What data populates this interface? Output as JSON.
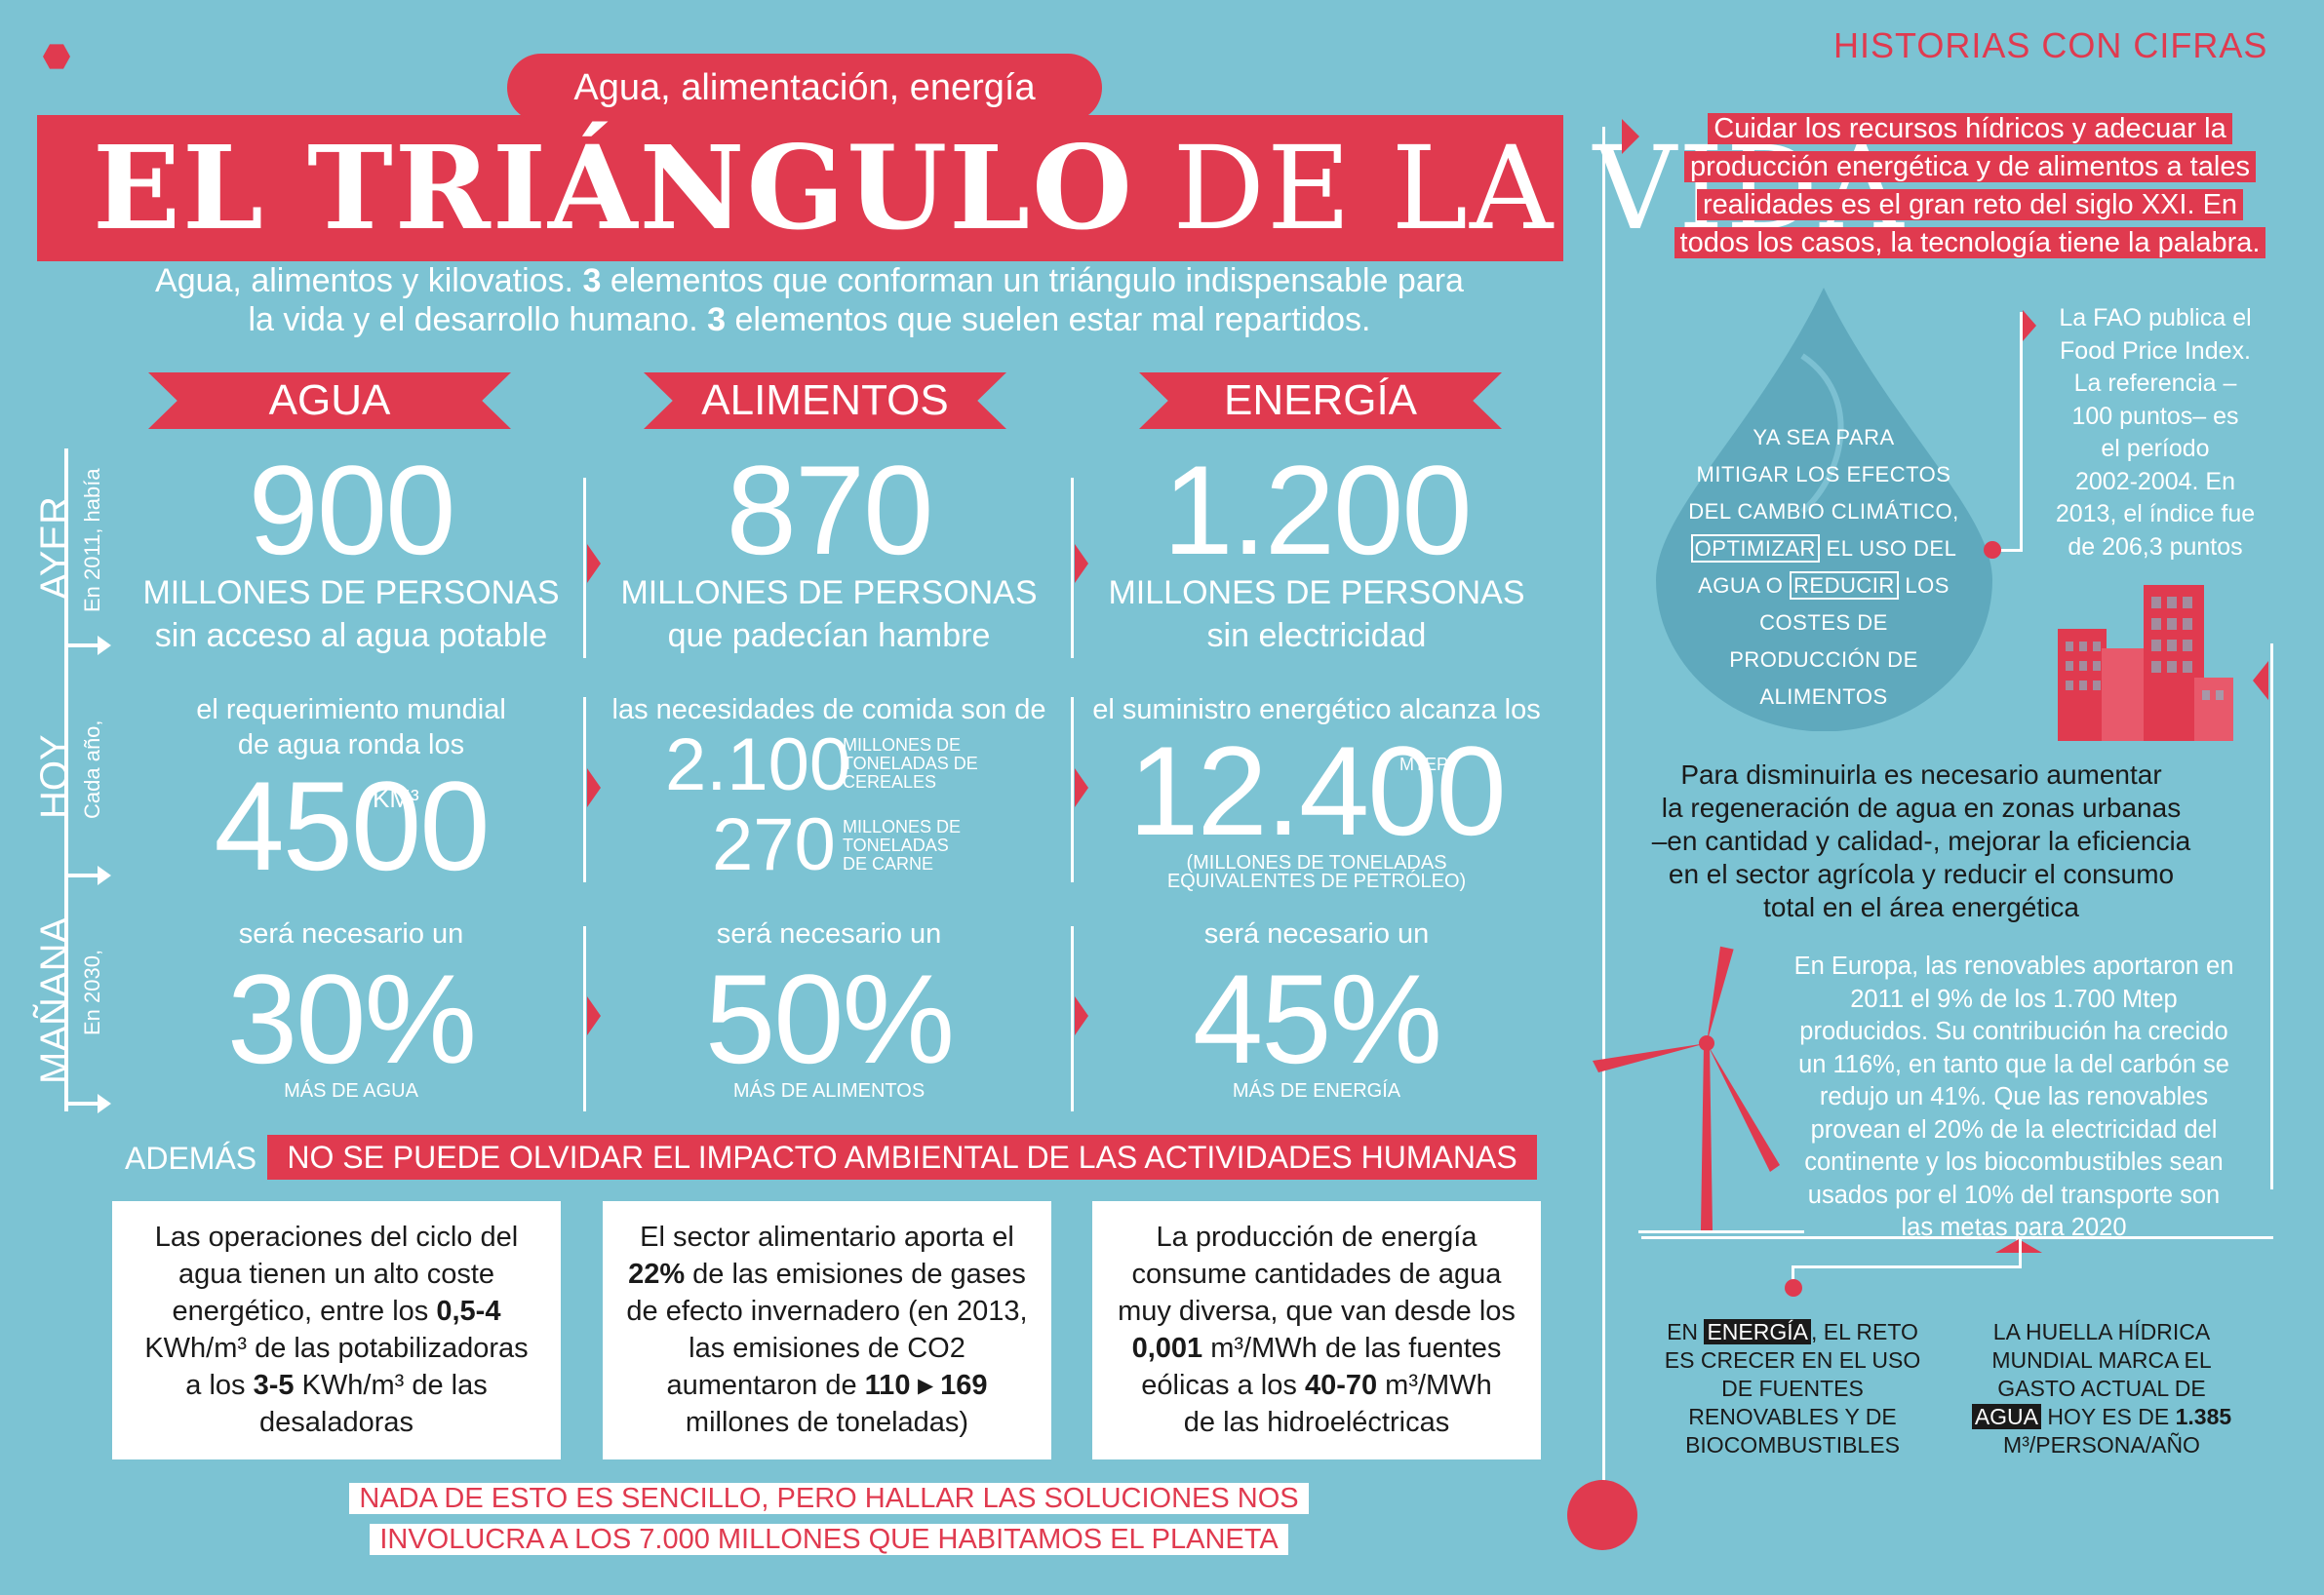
{
  "header": {
    "brand": "HISTORIAS CON CIFRAS",
    "kicker": "Agua, alimentación, energía",
    "title_bold": "EL TRIÁNGULO",
    "title_light": " DE LA VIDA",
    "subtitle_line1_a": "Agua, alimentos y kilovatios. ",
    "subtitle_line1_b": "3",
    "subtitle_line1_c": " elementos que conforman un triángulo indispensable para",
    "subtitle_line2_a": "la vida y el desarrollo humano. ",
    "subtitle_line2_b": "3",
    "subtitle_line2_c": " elementos que suelen estar mal repartidos."
  },
  "columns": {
    "agua": "AGUA",
    "alimentos": "ALIMENTOS",
    "energia": "ENERGÍA"
  },
  "rows": {
    "ayer": {
      "label": "AYER",
      "sub": "En 2011, había"
    },
    "hoy": {
      "label": "HOY",
      "sub": "Cada año,"
    },
    "manana": {
      "label": "MAÑANA",
      "sub": "En 2030,"
    }
  },
  "ayer": {
    "agua": {
      "num": "900",
      "unit": "MILLONES DE PERSONAS",
      "desc": "sin acceso al agua potable"
    },
    "alimentos": {
      "num": "870",
      "unit": "MILLONES DE PERSONAS",
      "desc": "que padecían hambre"
    },
    "energia": {
      "num": "1.200",
      "unit": "MILLONES DE PERSONAS",
      "desc": "sin electricidad"
    }
  },
  "hoy": {
    "agua": {
      "intro1": "el requerimiento mundial",
      "intro2": "de agua ronda los",
      "num": "4500",
      "unit": "KM³"
    },
    "alimentos": {
      "intro": "las necesidades de comida son de",
      "num1": "2.100",
      "unit1a": "MILLONES DE",
      "unit1b": "TONELADAS DE",
      "unit1c": "CEREALES",
      "num2": "270",
      "unit2a": "MILLONES DE",
      "unit2b": "TONELADAS",
      "unit2c": "DE CARNE"
    },
    "energia": {
      "intro": "el suministro energético alcanza los",
      "num": "12.400",
      "unit": "MTEP",
      "note1": "(MILLONES DE TONELADAS",
      "note2": "EQUIVALENTES DE PETRÓLEO)"
    }
  },
  "manana": {
    "agua": {
      "intro": "será necesario un",
      "num": "30%",
      "unit": "MÁS DE AGUA"
    },
    "alimentos": {
      "intro": "será necesario un",
      "num": "50%",
      "unit": "MÁS DE ALIMENTOS"
    },
    "energia": {
      "intro": "será necesario un",
      "num": "45%",
      "unit": "MÁS DE ENERGÍA"
    }
  },
  "ademas": {
    "label": "ADEMÁS",
    "banner": "NO SE PUEDE OLVIDAR EL IMPACTO AMBIENTAL DE LAS ACTIVIDADES HUMANAS"
  },
  "boxes": {
    "b1": {
      "l1": "Las operaciones del ciclo del",
      "l2": "agua tienen un alto coste",
      "l3a": "energético, entre los ",
      "l3b": "0,5-4",
      "l4": "KWh/m³ de las potabilizadoras",
      "l5a": "a los ",
      "l5b": "3-5",
      "l5c": " KWh/m³ de las",
      "l6": "desaladoras"
    },
    "b2": {
      "l1": "El sector alimentario aporta el",
      "l2a": "22%",
      "l2b": " de las emisiones de gases",
      "l3": "de efecto invernadero (en 2013,",
      "l4": "las emisiones de CO2",
      "l5a": "aumentaron de ",
      "l5b": "110 ▸ 169",
      "l6": "millones de toneladas)"
    },
    "b3": {
      "l1": "La producción de energía",
      "l2": "consume cantidades de agua",
      "l3": "muy diversa, que van desde los",
      "l4a": "0,001",
      "l4b": " m³/MWh de las fuentes",
      "l5a": "eólicas a los ",
      "l5b": "40-70",
      "l5c": " m³/MWh",
      "l6": "de las hidroeléctricas"
    }
  },
  "footer": {
    "l1": "NADA DE ESTO ES SENCILLO, PERO HALLAR LAS SOLUCIONES NOS",
    "l2": "INVOLUCRA A LOS 7.000 MILLONES QUE HABITAMOS EL PLANETA"
  },
  "right": {
    "intro": [
      "Cuidar los recursos hídricos y adecuar la",
      "producción energética y de alimentos a tales",
      "realidades es el gran reto del siglo XXI. En",
      "todos los casos, la tecnología tiene la palabra."
    ],
    "drop": {
      "l1": "YA SEA PARA",
      "l2": "MITIGAR LOS EFECTOS",
      "l3": "DEL CAMBIO CLIMÁTICO,",
      "l4a": "OPTIMIZAR",
      "l4b": " EL USO DEL",
      "l5a": "AGUA O ",
      "l5b": "REDUCIR",
      "l5c": " LOS",
      "l6": "COSTES DE",
      "l7": "PRODUCCIÓN DE",
      "l8": "ALIMENTOS"
    },
    "fao": [
      "La FAO publica el",
      "Food Price Index.",
      "La referencia –",
      "100 puntos– es",
      "el período",
      "2002-2004. En",
      "2013, el índice fue",
      "de 206,3 puntos"
    ],
    "disminuir": [
      "Para disminuirla es necesario aumentar",
      "la regeneración de agua en zonas urbanas",
      "–en cantidad y calidad-, mejorar la eficiencia",
      "en el sector agrícola y reducir el consumo",
      "total en el área energética"
    ],
    "europa": [
      "En Europa, las renovables aportaron en",
      "2011 el 9% de los 1.700 Mtep",
      "producidos. Su contribución ha crecido",
      "un 116%, en tanto que la del carbón se",
      "redujo un 41%. Que las renovables",
      "provean el 20% de la electricidad del",
      "continente y los biocombustibles sean",
      "usados por el 10% del transporte son",
      "las metas para 2020"
    ],
    "energia_reto": {
      "l1a": "EN ",
      "l1b": "ENERGÍA",
      "l1c": ", EL RETO",
      "l2": "ES CRECER EN EL USO",
      "l3": "DE FUENTES",
      "l4": "RENOVABLES Y DE",
      "l5": "BIOCOMBUSTIBLES"
    },
    "huella": {
      "l1": "LA HUELLA HÍDRICA",
      "l2": "MUNDIAL MARCA EL",
      "l3": "GASTO ACTUAL DE",
      "l4a": "AGUA",
      "l4b": " HOY ES DE ",
      "l4c": "1.385",
      "l5": "M³/PERSONA/AÑO"
    }
  },
  "colors": {
    "background": "#7cc3d3",
    "accent": "#e03a4f",
    "box": "#ffffff"
  },
  "icons": [
    "hexagon-logo-icon",
    "water-drop-icon",
    "buildings-icon",
    "wind-turbine-icon"
  ]
}
